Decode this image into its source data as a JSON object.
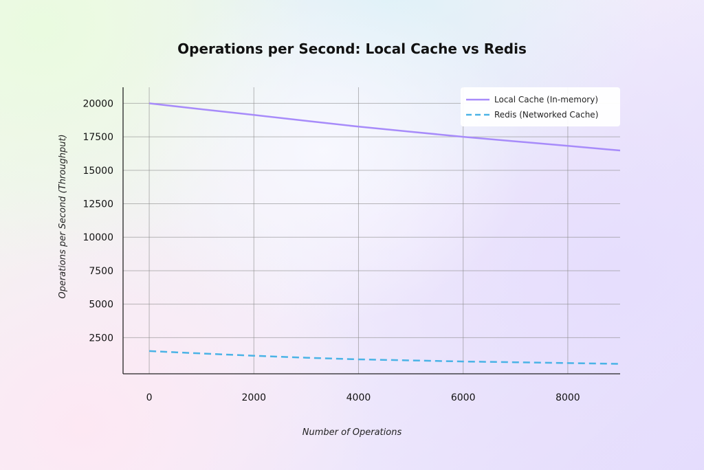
{
  "chart_data": {
    "type": "line",
    "title": "Operations per Second: Local Cache vs Redis",
    "xlabel": "Number of Operations",
    "ylabel": "Operations per Second (Throughput)",
    "xlim": [
      -500,
      9000
    ],
    "ylim": [
      -200,
      21200
    ],
    "xticks": [
      0,
      2000,
      4000,
      6000,
      8000
    ],
    "yticks": [
      2500,
      5000,
      7500,
      10000,
      12500,
      15000,
      17500,
      20000
    ],
    "grid": true,
    "legend_position": "top-right",
    "series": [
      {
        "name": "Local Cache (In-memory)",
        "color": "#a78bfa",
        "style": "solid",
        "x": [
          0,
          1000,
          2000,
          3000,
          4000,
          5000,
          6000,
          7000,
          8000,
          9000
        ],
        "y": [
          20000,
          19560,
          19130,
          18690,
          18260,
          17880,
          17500,
          17160,
          16820,
          16480
        ]
      },
      {
        "name": "Redis (Networked Cache)",
        "color": "#4ab3e6",
        "style": "dashed",
        "x": [
          0,
          1000,
          2000,
          3000,
          4000,
          5000,
          6000,
          7000,
          8000,
          9000
        ],
        "y": [
          1500,
          1320,
          1150,
          1000,
          880,
          800,
          720,
          660,
          600,
          540
        ]
      }
    ]
  }
}
